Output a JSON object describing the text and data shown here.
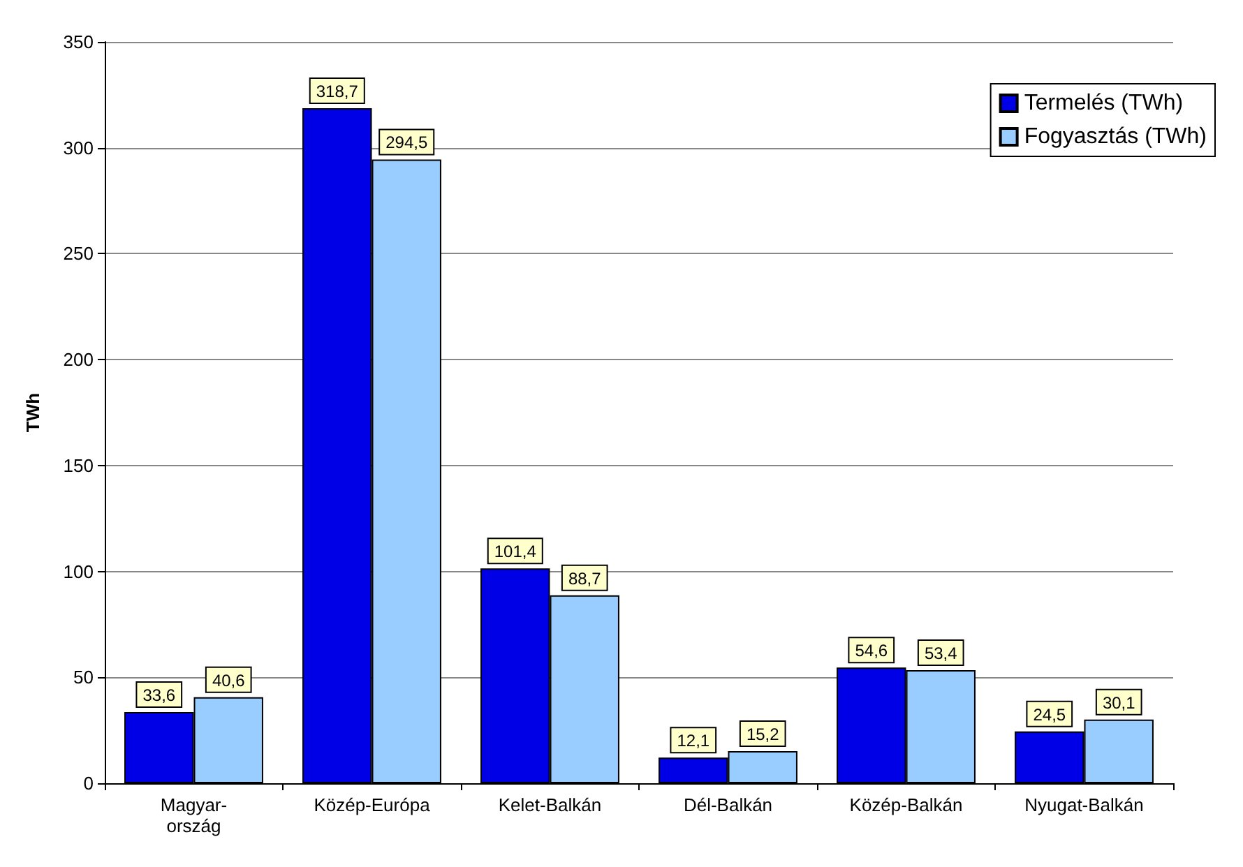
{
  "chart_data": {
    "type": "bar",
    "ylabel": "TWh",
    "categories": [
      "Magyar-\nország",
      "Közép-Európa",
      "Kelet-Balkán",
      "Dél-Balkán",
      "Közép-Balkán",
      "Nyugat-Balkán"
    ],
    "series": [
      {
        "name": "Termelés (TWh)",
        "color": "#0000e6",
        "values": [
          33.6,
          318.7,
          101.4,
          12.1,
          54.6,
          24.5
        ],
        "value_labels": [
          "33,6",
          "318,7",
          "101,4",
          "12,1",
          "54,6",
          "24,5"
        ]
      },
      {
        "name": "Fogyasztás (TWh)",
        "color": "#99ccff",
        "values": [
          40.6,
          294.5,
          88.7,
          15.2,
          53.4,
          30.1
        ],
        "value_labels": [
          "40,6",
          "294,5",
          "88,7",
          "15,2",
          "53,4",
          "30,1"
        ]
      }
    ],
    "ylim": [
      0,
      350
    ],
    "yticks": [
      0,
      50,
      100,
      150,
      200,
      250,
      300,
      350
    ],
    "grid": "y",
    "legend": "top right"
  }
}
